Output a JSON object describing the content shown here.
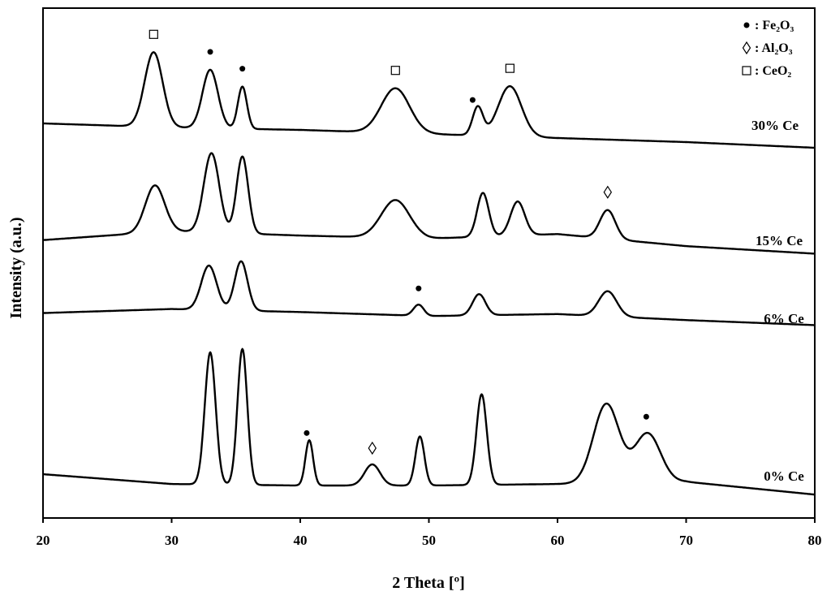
{
  "chart_data": {
    "type": "line",
    "xlabel": "2 Theta [º]",
    "ylabel": "Intensity (a.u.)",
    "xlim": [
      20,
      80
    ],
    "x_ticks": [
      "20",
      "30",
      "40",
      "50",
      "60",
      "70",
      "80"
    ],
    "grid": false,
    "legend_position": "top-right",
    "legend": [
      {
        "symbol": "•",
        "text": ": Fe₂O₃"
      },
      {
        "symbol": "◊",
        "text": ": Al₂O₃"
      },
      {
        "symbol": "□",
        "text": ": CeO₂"
      }
    ],
    "series": [
      {
        "name": "30% Ce",
        "baseline": [
          [
            20,
            0.18
          ],
          [
            30,
            0.13
          ],
          [
            40,
            0.1
          ],
          [
            50,
            0.05
          ],
          [
            60,
            0.0
          ],
          [
            70,
            -0.05
          ],
          [
            80,
            -0.12
          ]
        ],
        "peaks": [
          [
            28.6,
            0.92,
            0.7
          ],
          [
            33.0,
            0.72,
            0.6
          ],
          [
            35.5,
            0.52,
            0.35
          ],
          [
            47.4,
            0.55,
            1.1
          ],
          [
            53.8,
            0.35,
            0.4
          ],
          [
            56.3,
            0.62,
            0.9
          ]
        ],
        "markers": [
          {
            "x": 28.6,
            "symbol": "□"
          },
          {
            "x": 33.0,
            "symbol": "•"
          },
          {
            "x": 35.5,
            "symbol": "•"
          },
          {
            "x": 47.4,
            "symbol": "□"
          },
          {
            "x": 53.4,
            "symbol": "•"
          },
          {
            "x": 56.3,
            "symbol": "□"
          }
        ]
      },
      {
        "name": "15% Ce",
        "baseline": [
          [
            20,
            0.1
          ],
          [
            30,
            0.22
          ],
          [
            40,
            0.16
          ],
          [
            50,
            0.12
          ],
          [
            60,
            0.18
          ],
          [
            70,
            0.02
          ],
          [
            80,
            -0.08
          ]
        ],
        "peaks": [
          [
            28.7,
            0.62,
            0.75
          ],
          [
            33.1,
            1.05,
            0.6
          ],
          [
            35.5,
            1.02,
            0.45
          ],
          [
            47.4,
            0.5,
            1.1
          ],
          [
            54.2,
            0.58,
            0.45
          ],
          [
            56.9,
            0.45,
            0.55
          ],
          [
            63.9,
            0.38,
            0.6
          ]
        ],
        "markers": [
          {
            "x": 63.9,
            "symbol": "◊"
          }
        ]
      },
      {
        "name": "6% Ce",
        "baseline": [
          [
            20,
            0.12
          ],
          [
            30,
            0.2
          ],
          [
            40,
            0.14
          ],
          [
            50,
            0.06
          ],
          [
            60,
            0.1
          ],
          [
            70,
            -0.02
          ],
          [
            80,
            -0.12
          ]
        ],
        "peaks": [
          [
            32.9,
            0.88,
            0.6
          ],
          [
            35.4,
            0.98,
            0.5
          ],
          [
            49.2,
            0.22,
            0.4
          ],
          [
            53.9,
            0.42,
            0.5
          ],
          [
            63.9,
            0.5,
            0.7
          ]
        ],
        "markers": [
          {
            "x": 49.2,
            "symbol": "•"
          }
        ]
      },
      {
        "name": "0% Ce",
        "baseline": [
          [
            20,
            0.15
          ],
          [
            30,
            0.02
          ],
          [
            40,
            0.0
          ],
          [
            50,
            0.0
          ],
          [
            60,
            0.02
          ],
          [
            70,
            0.05
          ],
          [
            80,
            -0.12
          ]
        ],
        "peaks": [
          [
            33.0,
            1.75,
            0.42
          ],
          [
            35.5,
            1.8,
            0.38
          ],
          [
            40.7,
            0.6,
            0.3
          ],
          [
            45.6,
            0.28,
            0.6
          ],
          [
            49.3,
            0.65,
            0.35
          ],
          [
            54.1,
            1.2,
            0.4
          ],
          [
            63.8,
            1.05,
            1.0
          ],
          [
            67.0,
            0.65,
            1.0
          ]
        ],
        "markers": [
          {
            "x": 40.5,
            "symbol": "•"
          },
          {
            "x": 45.6,
            "symbol": "◊"
          },
          {
            "x": 66.9,
            "symbol": "•"
          }
        ]
      }
    ]
  }
}
